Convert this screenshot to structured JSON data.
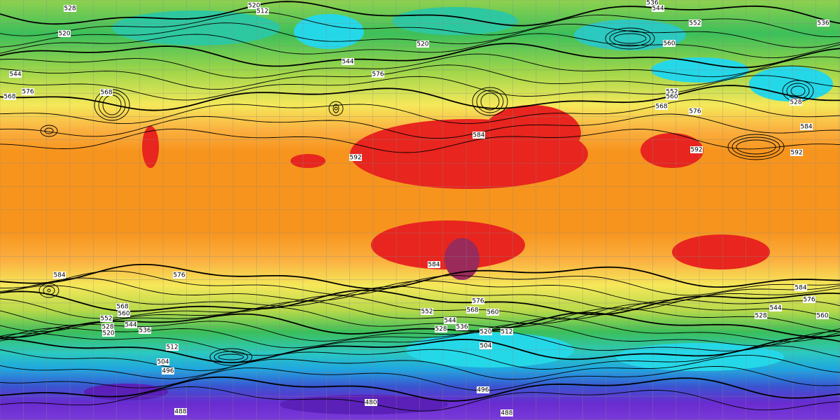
{
  "contour_labels": [
    "528",
    "520",
    "512",
    "536",
    "544",
    "552",
    "520",
    "520",
    "560",
    "536",
    "544",
    "568",
    "576",
    "568",
    "576",
    "544",
    "552",
    "560",
    "568",
    "576",
    "528",
    "584",
    "584",
    "592",
    "592",
    "592",
    "584",
    "584",
    "576",
    "584",
    "576",
    "568",
    "560",
    "552",
    "544",
    "536",
    "528",
    "520",
    "576",
    "568",
    "560",
    "552",
    "544",
    "536",
    "528",
    "520",
    "512",
    "504",
    "512",
    "504",
    "496",
    "528",
    "544",
    "560",
    "496",
    "480",
    "488",
    "488"
  ]
}
